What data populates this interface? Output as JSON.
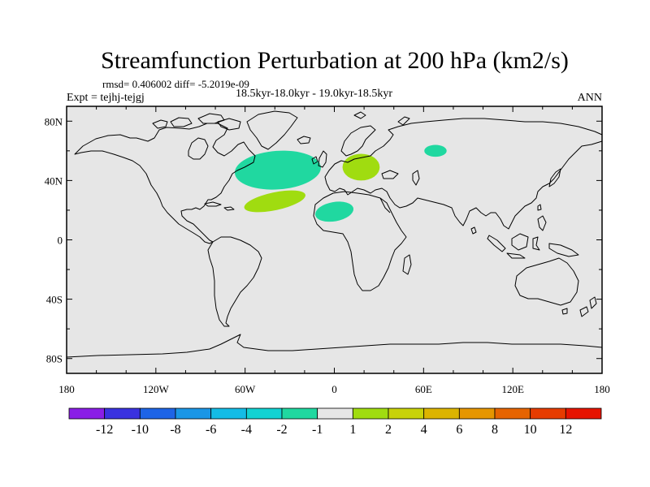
{
  "title": "Streamfunction Perturbation at 200 hPa (km2/s)",
  "stats": "rmsd= 0.406002 diff= -5.2019e-09",
  "period": "18.5kyr-18.0kyr - 19.0kyr-18.5kyr",
  "experiment": "Expt = tejhj-tejgj",
  "season": "ANN",
  "map": {
    "projection": "cylindrical-equidistant",
    "background_color": "#e6e6e6",
    "lon_range": [
      -180,
      180
    ],
    "lat_range": [
      -90,
      90
    ],
    "lon_ticks": [
      {
        "value": -180,
        "label": "180"
      },
      {
        "value": -120,
        "label": "120W"
      },
      {
        "value": -60,
        "label": "60W"
      },
      {
        "value": 0,
        "label": "0"
      },
      {
        "value": 60,
        "label": "60E"
      },
      {
        "value": 120,
        "label": "120E"
      },
      {
        "value": 180,
        "label": "180"
      }
    ],
    "lat_ticks": [
      {
        "value": 80,
        "label": "80N"
      },
      {
        "value": 40,
        "label": "40N"
      },
      {
        "value": 0,
        "label": "0"
      },
      {
        "value": -40,
        "label": "40S"
      },
      {
        "value": -80,
        "label": "80S"
      }
    ],
    "anomaly_regions": [
      {
        "name": "north-atlantic-negative",
        "category": "-2 to -1",
        "color": "#20d8a0",
        "lon": -38,
        "lat": 47,
        "rlon": 29,
        "rlat": 13,
        "rotate": -4
      },
      {
        "name": "subtropical-atlantic-positive",
        "category": "1 to 2",
        "color": "#a0dc10",
        "lon": -40,
        "lat": 26,
        "rlon": 21,
        "rlat": 6,
        "rotate": -12
      },
      {
        "name": "europe-positive",
        "category": "1 to 2",
        "color": "#a0dc10",
        "lon": 18,
        "lat": 49,
        "rlon": 12.5,
        "rlat": 9,
        "rotate": 0
      },
      {
        "name": "north-africa-negative",
        "category": "-2 to -1",
        "color": "#20d8a0",
        "lon": 0,
        "lat": 19,
        "rlon": 13,
        "rlat": 6.5,
        "rotate": -10
      },
      {
        "name": "central-asia-negative",
        "category": "-2 to -1",
        "color": "#20d8a0",
        "lon": 68,
        "lat": 60,
        "rlon": 7.5,
        "rlat": 4,
        "rotate": 0
      }
    ]
  },
  "colorbar": {
    "colors": [
      "#8a1ee6",
      "#3a32e0",
      "#1e64e6",
      "#1a96e6",
      "#14bce6",
      "#12d2d2",
      "#20d8a0",
      "#e6e6e6",
      "#a0dc10",
      "#c8d20a",
      "#dcb400",
      "#e69600",
      "#e66400",
      "#e63c00",
      "#e61400"
    ],
    "labels": [
      "-12",
      "-10",
      "-8",
      "-6",
      "-4",
      "-2",
      "-1",
      "1",
      "2",
      "4",
      "6",
      "8",
      "10",
      "12"
    ]
  }
}
